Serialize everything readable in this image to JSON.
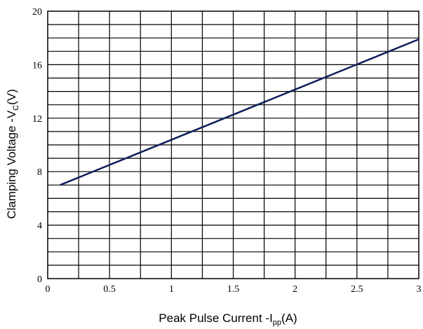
{
  "chart_data": {
    "type": "line",
    "xlabel": {
      "prefix": "Peak Pulse Current   -I",
      "sub": "pp",
      "suffix": "(A)"
    },
    "ylabel": {
      "prefix": "Clamping Voltage -V",
      "sub": "C",
      "suffix": "(V)"
    },
    "xlim": [
      0,
      3
    ],
    "ylim": [
      0,
      20
    ],
    "x_ticks": [
      "0",
      "0.5",
      "1",
      "1.5",
      "2",
      "2.5",
      "3"
    ],
    "x_tick_values": [
      0,
      0.5,
      1,
      1.5,
      2,
      2.5,
      3
    ],
    "y_ticks": [
      "0",
      "4",
      "8",
      "12",
      "16",
      "20"
    ],
    "y_tick_values": [
      0,
      4,
      8,
      12,
      16,
      20
    ],
    "x_grid_step": 0.25,
    "y_grid_step": 1,
    "grid": true,
    "series": [
      {
        "color": "#0b1e5b",
        "x": [
          0.1,
          3.0
        ],
        "y": [
          7.0,
          17.9
        ]
      }
    ]
  }
}
